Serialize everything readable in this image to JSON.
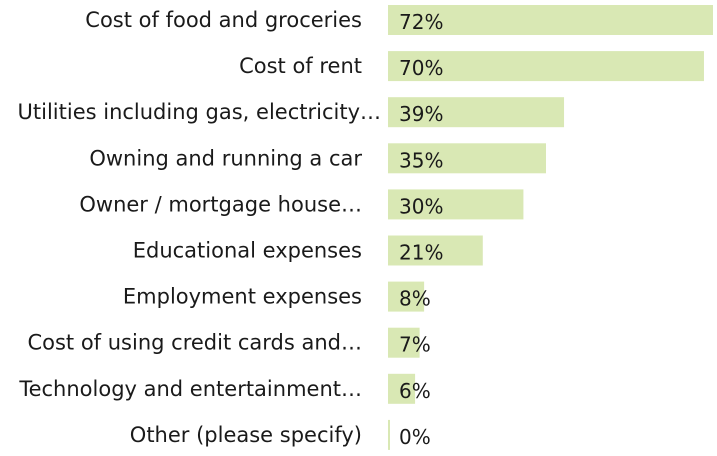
{
  "chart_data": {
    "type": "bar",
    "orientation": "horizontal",
    "categories": [
      "Cost of food and groceries",
      "Cost of rent",
      "Utilities including gas, electricity…",
      "Owning and running a car",
      "Owner / mortgage house…",
      "Educational expenses",
      "Employment expenses",
      "Cost of using credit cards and…",
      "Technology and entertainment…",
      "Other (please specify)"
    ],
    "values": [
      72,
      70,
      39,
      35,
      30,
      21,
      8,
      7,
      6,
      0
    ],
    "value_labels": [
      "72%",
      "70%",
      "39%",
      "35%",
      "30%",
      "21%",
      "8%",
      "7%",
      "6%",
      "0%"
    ],
    "unit": "%",
    "xlim": [
      0,
      72
    ],
    "grid": false,
    "legend": "none",
    "bar_color": "#d9e8b4"
  }
}
